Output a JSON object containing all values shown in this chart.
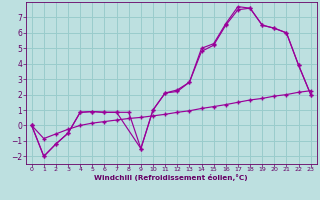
{
  "background_color": "#bde0e0",
  "grid_color": "#99cccc",
  "line_color": "#990099",
  "xlim": [
    -0.5,
    23.5
  ],
  "ylim": [
    -2.5,
    8.0
  ],
  "xticks": [
    0,
    1,
    2,
    3,
    4,
    5,
    6,
    7,
    8,
    9,
    10,
    11,
    12,
    13,
    14,
    15,
    16,
    17,
    18,
    19,
    20,
    21,
    22,
    23
  ],
  "yticks": [
    -2,
    -1,
    0,
    1,
    2,
    3,
    4,
    5,
    6,
    7
  ],
  "xlabel": "Windchill (Refroidissement éolien,°C)",
  "line1_x": [
    0,
    1,
    2,
    3,
    4,
    5,
    6,
    7,
    8,
    9,
    10,
    11,
    12,
    13,
    14,
    15,
    16,
    17,
    18,
    19,
    20,
    21,
    22,
    23
  ],
  "line1_y": [
    0,
    -2,
    -1.2,
    -0.5,
    0.85,
    0.9,
    0.85,
    0.85,
    0.85,
    -1.5,
    1.0,
    2.1,
    2.2,
    2.8,
    4.8,
    5.2,
    6.5,
    7.5,
    7.6,
    6.5,
    6.3,
    6.0,
    3.9,
    2.0
  ],
  "line2_x": [
    0,
    1,
    2,
    3,
    4,
    5,
    6,
    7,
    8,
    9,
    10,
    11,
    12,
    13,
    14,
    15,
    16,
    17,
    18,
    19,
    20,
    21,
    22,
    23
  ],
  "line2_y": [
    0,
    -0.85,
    -0.55,
    -0.25,
    0.0,
    0.15,
    0.25,
    0.35,
    0.45,
    0.52,
    0.62,
    0.72,
    0.85,
    0.95,
    1.1,
    1.22,
    1.35,
    1.5,
    1.65,
    1.75,
    1.9,
    2.0,
    2.15,
    2.25
  ],
  "line3_x": [
    0,
    1,
    2,
    3,
    4,
    5,
    6,
    7,
    9,
    10,
    11,
    12,
    13,
    14,
    15,
    16,
    17,
    18,
    19,
    20,
    21,
    22,
    23
  ],
  "line3_y": [
    0,
    -2,
    -1.2,
    -0.5,
    0.85,
    0.9,
    0.85,
    0.85,
    -1.5,
    1.0,
    2.1,
    2.3,
    2.8,
    5.0,
    5.3,
    6.6,
    7.7,
    7.6,
    6.5,
    6.3,
    6.0,
    3.9,
    2.0
  ]
}
